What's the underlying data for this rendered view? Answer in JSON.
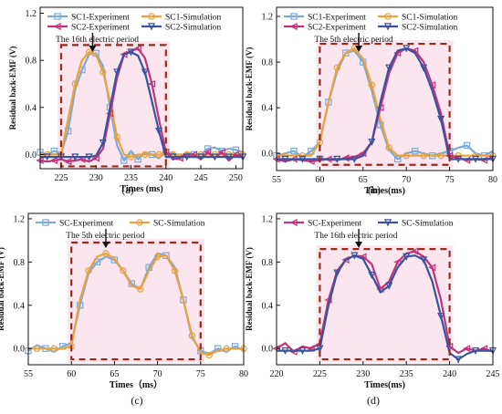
{
  "chart_data": [
    {
      "type": "line",
      "sub_label": "(a)",
      "xlabel": "Times (ms)",
      "ylabel": "Residual back-EMF (V)",
      "xlim": [
        222,
        251
      ],
      "ylim": [
        -0.12,
        1.25
      ],
      "xticks": [
        225,
        230,
        235,
        240,
        245,
        250
      ],
      "yticks": [
        0.0,
        0.4,
        0.8,
        1.2
      ],
      "yticklabels": [
        "0.0",
        "0.4",
        "0.8",
        "1.2"
      ],
      "annotation": "The 16th electric period",
      "arrow_x": 229.5,
      "window": {
        "x": [
          225,
          240
        ],
        "y": [
          -0.1,
          0.93
        ]
      },
      "legend_cols": 2,
      "series": [
        {
          "name": "SC1-Experiment",
          "color": "#7fa9d6",
          "marker": "square",
          "x": [
            222,
            223,
            224,
            225,
            226,
            227,
            228,
            229,
            230,
            231,
            232,
            233,
            234,
            235,
            236,
            237,
            238,
            239,
            240,
            241,
            242,
            243,
            244,
            245,
            246,
            247,
            248,
            249,
            250,
            251
          ],
          "y": [
            0.02,
            0.0,
            0.03,
            0.01,
            0.2,
            0.55,
            0.72,
            0.85,
            0.86,
            0.75,
            0.4,
            0.08,
            -0.05,
            0.03,
            -0.04,
            0.02,
            0.0,
            -0.03,
            0.02,
            0.01,
            -0.02,
            0.02,
            0.0,
            0.0,
            0.05,
            0.06,
            0.03,
            0.05,
            0.04,
            0.02
          ]
        },
        {
          "name": "SC1-Simulation",
          "color": "#e8a33d",
          "marker": "circle",
          "x": [
            222,
            223,
            224,
            225,
            226,
            227,
            228,
            229,
            230,
            231,
            232,
            233,
            234,
            235,
            236,
            237,
            238,
            239,
            240,
            241,
            242,
            243,
            244,
            245,
            246,
            247,
            248,
            249,
            250,
            251
          ],
          "y": [
            0.0,
            0.0,
            0.0,
            0.0,
            0.3,
            0.6,
            0.8,
            0.87,
            0.85,
            0.7,
            0.45,
            0.15,
            0.0,
            -0.02,
            0.0,
            0.0,
            0.0,
            0.0,
            0.0,
            0.0,
            0.0,
            0.0,
            0.0,
            0.0,
            0.0,
            0.0,
            0.0,
            0.0,
            0.0,
            0.0
          ]
        },
        {
          "name": "SC2-Experiment",
          "color": "#c0357a",
          "marker": "triangle-left",
          "x": [
            222,
            223,
            224,
            225,
            226,
            227,
            228,
            229,
            230,
            231,
            232,
            233,
            234,
            235,
            236,
            237,
            238,
            239,
            240,
            241,
            242,
            243,
            244,
            245,
            246,
            247,
            248,
            249,
            250,
            251
          ],
          "y": [
            -0.05,
            -0.06,
            -0.05,
            -0.04,
            -0.06,
            -0.05,
            -0.04,
            -0.06,
            -0.03,
            0.05,
            0.35,
            0.65,
            0.85,
            0.88,
            0.9,
            0.82,
            0.6,
            0.3,
            0.02,
            -0.04,
            -0.03,
            0.0,
            0.0,
            -0.04,
            0.02,
            -0.03,
            0.02,
            -0.05,
            0.0,
            -0.02
          ]
        },
        {
          "name": "SC2-Simulation",
          "color": "#3a52a0",
          "marker": "triangle-down",
          "x": [
            222,
            223,
            224,
            225,
            226,
            227,
            228,
            229,
            230,
            231,
            232,
            233,
            234,
            235,
            236,
            237,
            238,
            239,
            240,
            241,
            242,
            243,
            244,
            245,
            246,
            247,
            248,
            249,
            250,
            251
          ],
          "y": [
            -0.02,
            -0.02,
            -0.02,
            -0.02,
            -0.02,
            -0.02,
            -0.02,
            -0.02,
            -0.01,
            0.1,
            0.4,
            0.7,
            0.85,
            0.87,
            0.84,
            0.7,
            0.45,
            0.2,
            -0.02,
            -0.02,
            -0.02,
            -0.02,
            -0.02,
            -0.02,
            -0.02,
            -0.02,
            -0.02,
            -0.02,
            -0.02,
            -0.02
          ]
        }
      ]
    },
    {
      "type": "line",
      "sub_label": "(b)",
      "xlabel": "Times(ms)",
      "ylabel": "Residual back-EMF (V)",
      "xlim": [
        55,
        80
      ],
      "ylim": [
        -0.15,
        1.28
      ],
      "xticks": [
        55,
        60,
        65,
        70,
        75,
        80
      ],
      "yticks": [
        0.0,
        0.4,
        0.8,
        1.2
      ],
      "yticklabels": [
        "0.0",
        "0.4",
        "0.8",
        "1.2"
      ],
      "annotation": "The 5th electric period",
      "arrow_x": 64.5,
      "window": {
        "x": [
          60,
          75
        ],
        "y": [
          -0.1,
          0.96
        ]
      },
      "legend_cols": 2,
      "series": [
        {
          "name": "SC1-Experiment",
          "color": "#7fa9d6",
          "marker": "square",
          "x": [
            55,
            56,
            57,
            58,
            59,
            60,
            61,
            62,
            63,
            64,
            65,
            66,
            67,
            68,
            69,
            70,
            71,
            72,
            73,
            74,
            75,
            76,
            77,
            78,
            79,
            80
          ],
          "y": [
            -0.02,
            0.0,
            0.02,
            -0.03,
            0.02,
            0.1,
            0.45,
            0.72,
            0.88,
            0.9,
            0.8,
            0.55,
            0.25,
            0.03,
            -0.05,
            0.0,
            0.02,
            0.0,
            -0.02,
            0.0,
            0.02,
            0.05,
            0.07,
            0.0,
            -0.02,
            0.02
          ]
        },
        {
          "name": "SC1-Simulation",
          "color": "#e8a33d",
          "marker": "circle",
          "x": [
            55,
            56,
            57,
            58,
            59,
            60,
            61,
            62,
            63,
            64,
            65,
            66,
            67,
            68,
            69,
            70,
            71,
            72,
            73,
            74,
            75,
            76,
            77,
            78,
            79,
            80
          ],
          "y": [
            -0.02,
            -0.02,
            -0.02,
            -0.02,
            -0.02,
            0.1,
            0.45,
            0.75,
            0.88,
            0.92,
            0.83,
            0.6,
            0.3,
            0.05,
            -0.02,
            -0.02,
            -0.02,
            -0.02,
            -0.02,
            -0.02,
            -0.02,
            -0.02,
            -0.02,
            -0.02,
            -0.02,
            -0.02
          ]
        },
        {
          "name": "SC2-Experiment",
          "color": "#c0357a",
          "marker": "triangle-left",
          "x": [
            55,
            56,
            57,
            58,
            59,
            60,
            61,
            62,
            63,
            64,
            65,
            66,
            67,
            68,
            69,
            70,
            71,
            72,
            73,
            74,
            75,
            76,
            77,
            78,
            79,
            80
          ],
          "y": [
            -0.05,
            -0.07,
            -0.05,
            -0.06,
            -0.07,
            -0.06,
            -0.05,
            -0.06,
            -0.04,
            -0.03,
            0.0,
            0.1,
            0.4,
            0.7,
            0.88,
            0.92,
            0.9,
            0.8,
            0.6,
            0.35,
            -0.02,
            -0.04,
            -0.06,
            -0.05,
            -0.06,
            -0.03
          ]
        },
        {
          "name": "SC2-Simulation",
          "color": "#3a52a0",
          "marker": "triangle-down",
          "x": [
            55,
            56,
            57,
            58,
            59,
            60,
            61,
            62,
            63,
            64,
            65,
            66,
            67,
            68,
            69,
            70,
            71,
            72,
            73,
            74,
            75,
            76,
            77,
            78,
            79,
            80
          ],
          "y": [
            -0.05,
            -0.05,
            -0.05,
            -0.05,
            -0.05,
            -0.05,
            -0.05,
            -0.05,
            -0.05,
            -0.05,
            -0.02,
            0.1,
            0.45,
            0.75,
            0.9,
            0.92,
            0.88,
            0.75,
            0.55,
            0.3,
            -0.05,
            -0.05,
            -0.05,
            -0.05,
            -0.05,
            -0.05
          ]
        }
      ]
    },
    {
      "type": "line",
      "sub_label": "(c)",
      "xlabel": "Times（ms）",
      "ylabel": "Residual back-EMF (V)",
      "xlim": [
        55,
        80
      ],
      "ylim": [
        -0.15,
        1.25
      ],
      "xticks": [
        55,
        60,
        65,
        70,
        75,
        80
      ],
      "yticks": [
        0.0,
        0.4,
        0.8,
        1.2
      ],
      "yticklabels": [
        "0.0",
        "0.4",
        "0.8",
        "1.2"
      ],
      "annotation": "The 5th electric period",
      "arrow_x": 64,
      "window": {
        "x": [
          60,
          75
        ],
        "y": [
          -0.1,
          0.98
        ]
      },
      "legend_cols": 2,
      "series": [
        {
          "name": "SC-Experiment",
          "color": "#7fa9d6",
          "marker": "square",
          "x": [
            55,
            56,
            57,
            58,
            59,
            60,
            61,
            62,
            63,
            64,
            65,
            66,
            67,
            68,
            69,
            70,
            71,
            72,
            73,
            74,
            75,
            76,
            77,
            78,
            79,
            80
          ],
          "y": [
            -0.02,
            0.03,
            0.0,
            -0.03,
            0.02,
            0.05,
            0.4,
            0.7,
            0.8,
            0.85,
            0.82,
            0.72,
            0.6,
            0.55,
            0.75,
            0.88,
            0.86,
            0.75,
            0.45,
            0.1,
            -0.02,
            -0.05,
            0.0,
            -0.03,
            0.02,
            -0.02
          ]
        },
        {
          "name": "SC-Simulation",
          "color": "#e8a33d",
          "marker": "circle",
          "x": [
            55,
            56,
            57,
            58,
            59,
            60,
            61,
            62,
            63,
            64,
            65,
            66,
            67,
            68,
            69,
            70,
            71,
            72,
            73,
            74,
            75,
            76,
            77,
            78,
            79,
            80
          ],
          "y": [
            0.0,
            0.0,
            0.0,
            0.0,
            0.0,
            0.02,
            0.45,
            0.72,
            0.85,
            0.88,
            0.83,
            0.72,
            0.58,
            0.55,
            0.72,
            0.85,
            0.86,
            0.72,
            0.45,
            0.12,
            -0.04,
            -0.06,
            -0.02,
            0.0,
            0.0,
            0.0
          ]
        }
      ]
    },
    {
      "type": "line",
      "sub_label": "(d)",
      "xlabel": "Times(ms)",
      "ylabel": "Residual back-EMF (V)",
      "xlim": [
        220,
        245
      ],
      "ylim": [
        -0.15,
        1.25
      ],
      "xticks": [
        220,
        225,
        230,
        235,
        240,
        245
      ],
      "yticks": [
        0.0,
        0.4,
        0.8,
        1.2
      ],
      "yticklabels": [
        "0.0",
        "0.4",
        "0.8",
        "1.2"
      ],
      "annotation": "The 16th electric period",
      "arrow_x": 229.5,
      "window": {
        "x": [
          225,
          240
        ],
        "y": [
          -0.1,
          0.92
        ]
      },
      "legend_cols": 2,
      "series": [
        {
          "name": "SC-Experiment",
          "color": "#c0357a",
          "marker": "triangle-left",
          "x": [
            220,
            221,
            222,
            223,
            224,
            225,
            226,
            227,
            228,
            229,
            230,
            231,
            232,
            233,
            234,
            235,
            236,
            237,
            238,
            239,
            240,
            241,
            242,
            243,
            244,
            245
          ],
          "y": [
            0.0,
            0.05,
            -0.03,
            0.02,
            0.0,
            0.05,
            0.45,
            0.72,
            0.82,
            0.86,
            0.85,
            0.78,
            0.55,
            0.62,
            0.8,
            0.88,
            0.9,
            0.85,
            0.75,
            0.45,
            0.02,
            -0.04,
            0.0,
            -0.02,
            0.0,
            -0.03
          ]
        },
        {
          "name": "SC-Simulation",
          "color": "#3a52a0",
          "marker": "triangle-down",
          "x": [
            220,
            221,
            222,
            223,
            224,
            225,
            226,
            227,
            228,
            229,
            230,
            231,
            232,
            233,
            234,
            235,
            236,
            237,
            238,
            239,
            240,
            241,
            242,
            243,
            244,
            245
          ],
          "y": [
            -0.02,
            -0.02,
            -0.02,
            -0.02,
            -0.02,
            0.0,
            0.4,
            0.7,
            0.82,
            0.86,
            0.83,
            0.68,
            0.52,
            0.58,
            0.75,
            0.85,
            0.86,
            0.82,
            0.62,
            0.3,
            -0.04,
            -0.1,
            -0.05,
            -0.02,
            -0.02,
            -0.02
          ]
        }
      ]
    }
  ],
  "styles": {
    "window_color": "#9b2a1a",
    "glow_color": "#f7c6dc",
    "axis_color": "#111111"
  }
}
